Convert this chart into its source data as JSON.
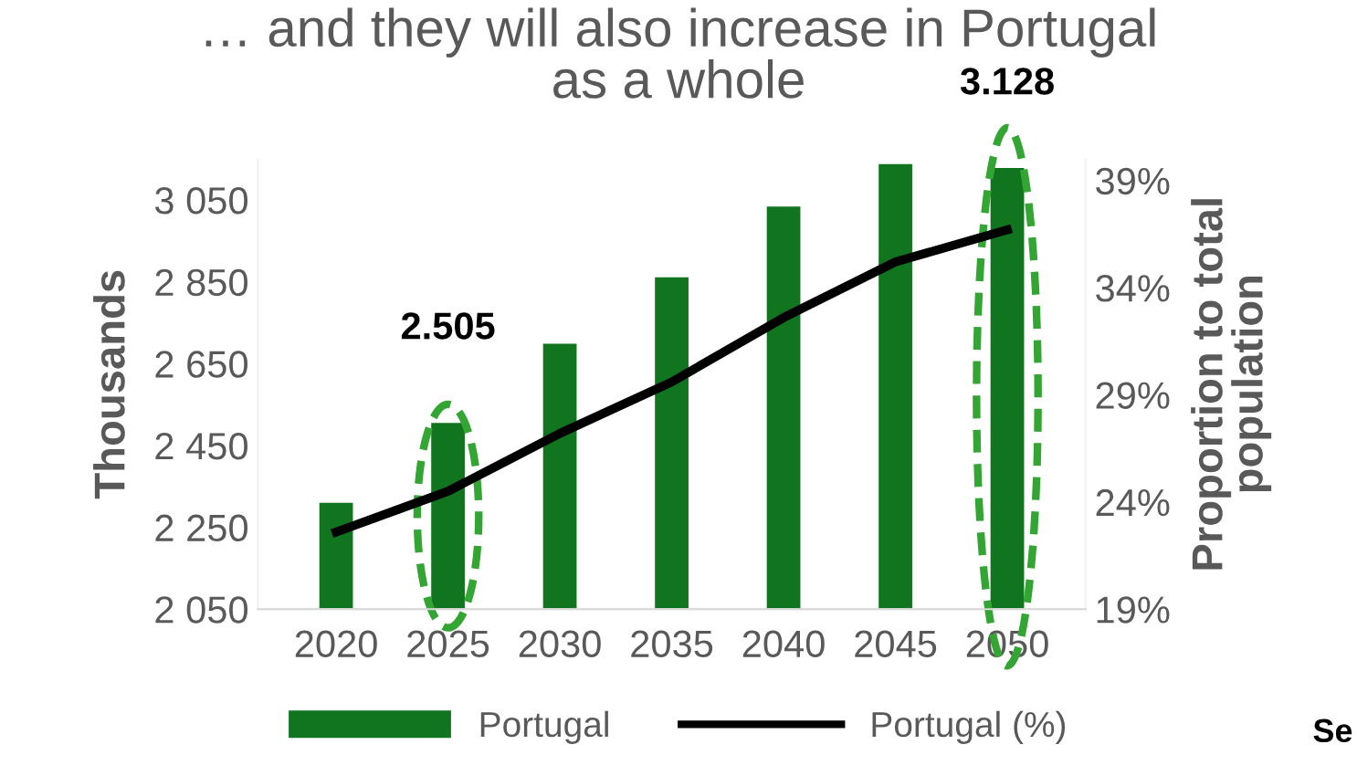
{
  "chart_data": {
    "type": "bar",
    "title": "… and they will also increase in Portugal\nas a whole",
    "categories": [
      "2020",
      "2025",
      "2030",
      "2035",
      "2040",
      "2045",
      "2050"
    ],
    "ylabel": "Thousands",
    "y2label": "Proportion to total\npopulation",
    "ylim": [
      2050,
      3150
    ],
    "yticks": [
      {
        "value": 2050,
        "label": "2 050"
      },
      {
        "value": 2250,
        "label": "2 250"
      },
      {
        "value": 2450,
        "label": "2 450"
      },
      {
        "value": 2650,
        "label": "2 650"
      },
      {
        "value": 2850,
        "label": "2 850"
      },
      {
        "value": 3050,
        "label": "3 050"
      }
    ],
    "y2lim": [
      19,
      40
    ],
    "y2ticks": [
      {
        "value": 19,
        "label": "19%"
      },
      {
        "value": 24,
        "label": "24%"
      },
      {
        "value": 29,
        "label": "29%"
      },
      {
        "value": 34,
        "label": "34%"
      },
      {
        "value": 39,
        "label": "39%"
      }
    ],
    "series": [
      {
        "name": "Portugal",
        "color": "#11741f",
        "values": [
          2310,
          2505,
          2699,
          2861,
          3034,
          3138,
          3128
        ],
        "value_labels": [
          null,
          "2.505",
          null,
          null,
          null,
          null,
          "3.128"
        ]
      },
      {
        "name": "Portugal (%)",
        "type": "line",
        "axis": "y2",
        "color": "#000000",
        "values": [
          22.6,
          24.5,
          27.2,
          29.6,
          32.6,
          35.2,
          36.7
        ]
      }
    ],
    "legend": "bottom",
    "grid": false,
    "marker": "none",
    "line_style": "solid",
    "annotations": [
      "Se"
    ]
  }
}
